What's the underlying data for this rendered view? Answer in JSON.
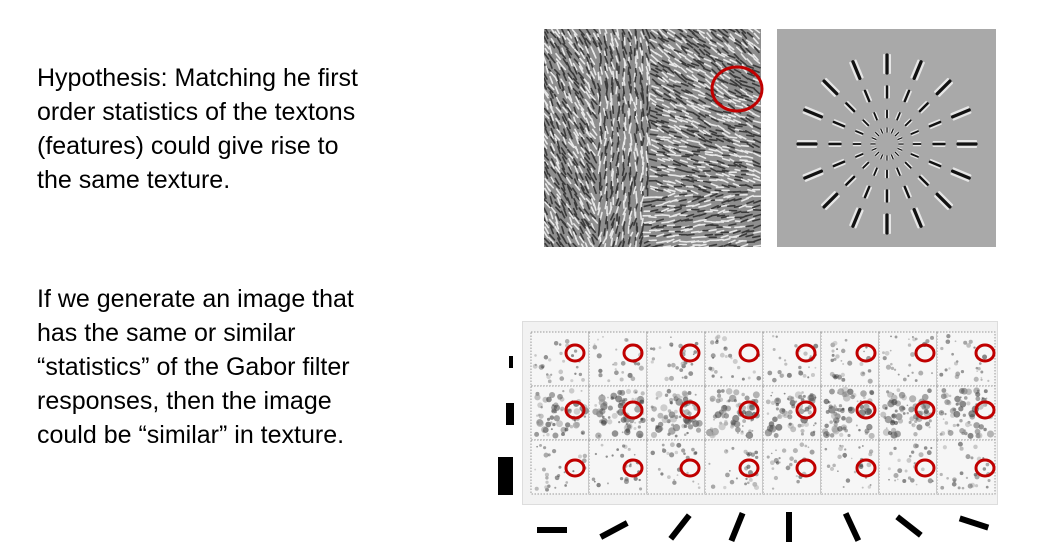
{
  "slide": {
    "hypothesis_text": "Hypothesis:  Matching he first\norder statistics of the textons\n(features) could give rise to\nthe same texture.",
    "generation_text": " If we generate an image that\nhas the same or similar\n“statistics” of the Gabor filter\nresponses, then the image\ncould be “similar” in texture."
  },
  "figure": {
    "highlight_color": "#c00000",
    "panels": [
      "synthesized-texture-image",
      "gabor-filter-bank-image",
      "filter-response-grid-image"
    ],
    "filter_scales": 3,
    "filter_orientations": 8
  }
}
